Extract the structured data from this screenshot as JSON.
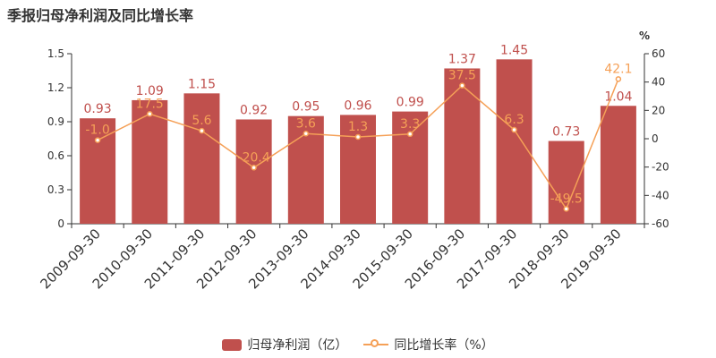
{
  "title": "季报归母净利润及同比增长率",
  "chart_data": {
    "type": "bar+line",
    "categories": [
      "2009-09-30",
      "2010-09-30",
      "2011-09-30",
      "2012-09-30",
      "2013-09-30",
      "2014-09-30",
      "2015-09-30",
      "2016-09-30",
      "2017-09-30",
      "2018-09-30",
      "2019-09-30"
    ],
    "series": [
      {
        "name": "归母净利润（亿）",
        "type": "bar",
        "axis": "left",
        "values": [
          0.93,
          1.09,
          1.15,
          0.92,
          0.95,
          0.96,
          0.99,
          1.37,
          1.45,
          0.73,
          1.04
        ],
        "labels": [
          "0.93",
          "1.09",
          "1.15",
          "0.92",
          "0.95",
          "0.96",
          "0.99",
          "1.37",
          "1.45",
          "0.73",
          "1.04"
        ],
        "color": "#c0504d"
      },
      {
        "name": "同比增长率（%）",
        "type": "line",
        "axis": "right",
        "values": [
          -1.0,
          17.5,
          5.6,
          -20.4,
          3.6,
          1.3,
          3.3,
          37.5,
          6.3,
          -49.5,
          42.1
        ],
        "labels": [
          "-1.0",
          "17.5",
          "5.6",
          "-20.4",
          "3.6",
          "1.3",
          "3.3",
          "37.5",
          "6.3",
          "-49.5",
          "42.1"
        ],
        "color": "#f5a057"
      }
    ],
    "y_left": {
      "min": 0,
      "max": 1.5,
      "ticks": [
        "0",
        "0.3",
        "0.6",
        "0.9",
        "1.2",
        "1.5"
      ]
    },
    "y_right": {
      "min": -60,
      "max": 60,
      "ticks": [
        "-60",
        "-40",
        "-20",
        "0",
        "20",
        "40",
        "60"
      ],
      "unit": "%"
    },
    "grid": false,
    "legend": "bottom-center",
    "axis_color": "#333333",
    "label_color": "#c0504d"
  },
  "legend": {
    "bar_label": "归母净利润（亿）",
    "line_label": "同比增长率（%）"
  }
}
